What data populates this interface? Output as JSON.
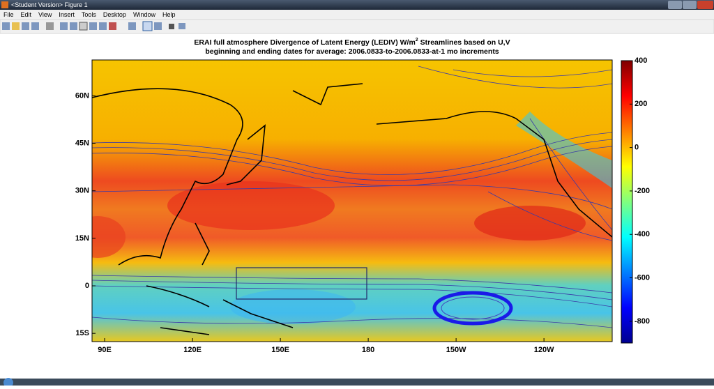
{
  "window": {
    "title": "<Student Version> Figure 1"
  },
  "menu": [
    "File",
    "Edit",
    "View",
    "Insert",
    "Tools",
    "Desktop",
    "Window",
    "Help"
  ],
  "figure": {
    "title_line1_a": "ERAI full atmosphere   Divergence of Latent Energy (LEDIV) W/m",
    "title_sup": "2",
    "title_line1_b": "   Streamlines based on U,V",
    "title_line2": "beginning and ending dates for average:  2006.0833-to-2006.0833-at-1 mo increments",
    "map": {
      "xlim": [
        85.7,
        263.3
      ],
      "ylim": [
        -17.6,
        71.3
      ],
      "xticks": [
        {
          "value": 90,
          "label": "90E"
        },
        {
          "value": 120,
          "label": "120E"
        },
        {
          "value": 150,
          "label": "150E"
        },
        180,
        {
          "value": 210,
          "label": "150W"
        },
        {
          "value": 240,
          "label": "120W"
        }
      ],
      "yticks": [
        {
          "value": 60,
          "label": "60N"
        },
        {
          "value": 45,
          "label": "45N"
        },
        {
          "value": 30,
          "label": "30N"
        },
        {
          "value": 15,
          "label": "15N"
        },
        0,
        {
          "value": -15,
          "label": "15S"
        }
      ]
    },
    "colorbar": {
      "lim": [
        -900,
        400
      ],
      "ticks": [
        400,
        200,
        0,
        -200,
        -400,
        -600,
        -800
      ]
    }
  }
}
